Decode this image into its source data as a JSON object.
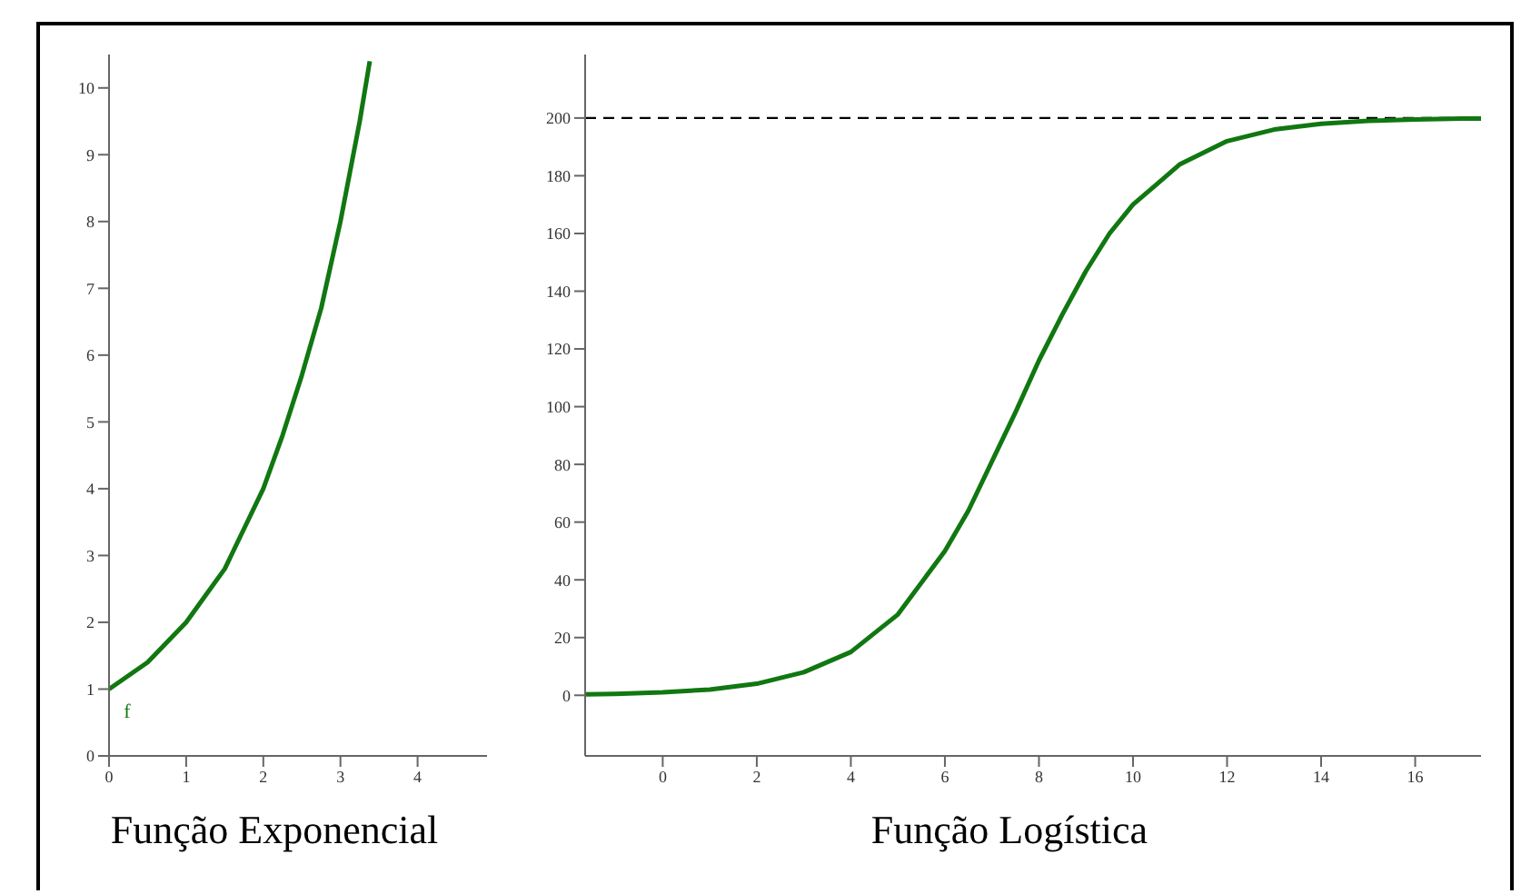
{
  "chart_data": [
    {
      "type": "line",
      "xlabel": "Função Exponencial",
      "xlim": [
        0,
        4.9
      ],
      "ylim": [
        0,
        10.5
      ],
      "xticks": [
        0,
        1,
        2,
        3,
        4
      ],
      "yticks": [
        0,
        1,
        2,
        3,
        4,
        5,
        6,
        7,
        8,
        9,
        10
      ],
      "grid": false,
      "legend": false,
      "marker": "none",
      "line_style": "solid",
      "annotations": [
        "f"
      ],
      "series": [
        {
          "color": "#117711",
          "x": [
            0,
            0.25,
            0.5,
            0.75,
            1,
            1.25,
            1.5,
            1.75,
            2,
            2.25,
            2.5,
            2.75,
            3,
            3.25,
            3.38
          ],
          "values": [
            1,
            1.2,
            1.4,
            1.7,
            2,
            2.4,
            2.8,
            3.4,
            4,
            4.8,
            5.7,
            6.7,
            8,
            9.5,
            10.4
          ]
        }
      ]
    },
    {
      "type": "line",
      "xlabel": "Função Logística",
      "xlim": [
        -1.65,
        17.4
      ],
      "ylim": [
        -21,
        222
      ],
      "xticks": [
        0,
        2,
        4,
        6,
        8,
        10,
        12,
        14,
        16
      ],
      "yticks": [
        0,
        20,
        40,
        60,
        80,
        100,
        120,
        140,
        160,
        180,
        200
      ],
      "grid": false,
      "legend": false,
      "marker": "none",
      "line_style": "solid",
      "ref_lines": [
        {
          "axis": "y",
          "value": 200,
          "color": "#000000",
          "line_style": "dashed"
        }
      ],
      "series": [
        {
          "color": "#117711",
          "x": [
            -1.65,
            -1,
            0,
            1,
            2,
            3,
            4,
            5,
            6,
            6.5,
            7,
            7.5,
            8,
            8.5,
            9,
            9.5,
            10,
            11,
            12,
            13,
            14,
            15,
            16,
            17,
            17.4
          ],
          "values": [
            0.3,
            0.5,
            1,
            2,
            4,
            8,
            15,
            28,
            50,
            64,
            81,
            98,
            116,
            132,
            147,
            160,
            170,
            184,
            192,
            196,
            198,
            199,
            199.5,
            199.8,
            199.8
          ]
        }
      ]
    }
  ]
}
